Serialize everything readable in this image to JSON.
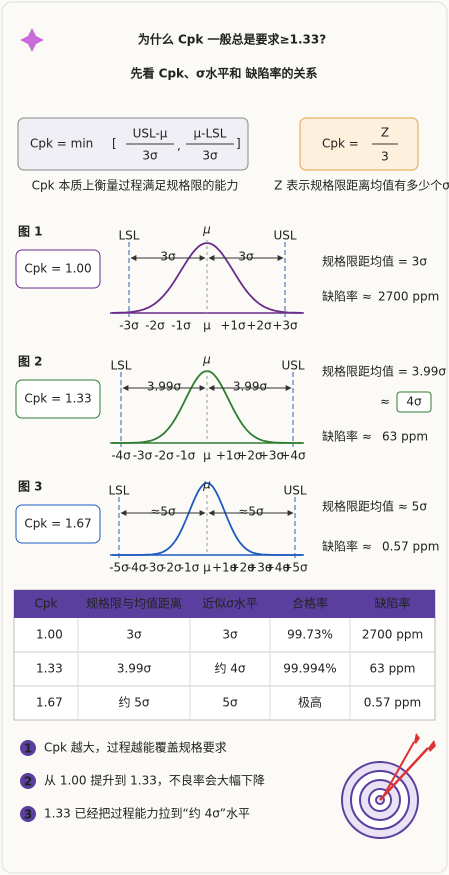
{
  "header": {
    "title": "为什么 Cpk 一般总是要求≥1.33?",
    "subtitle": "先看 Cpk、σ水平和 缺陷率的关系"
  },
  "formulas": {
    "cpk_min": {
      "lhs": "Cpk = min",
      "num1": "USL-μ",
      "den1": "3σ",
      "num2": "μ-LSL",
      "den2": "3σ",
      "caption": "Cpk 本质上衡量过程满足规格限的能力"
    },
    "cpk_z": {
      "lhs": "Cpk =",
      "num": "Z",
      "den": "3",
      "caption": "Z 表示规格限距离均值有多少个σ"
    }
  },
  "figures": [
    {
      "label": "图 1",
      "cpk": "Cpk = 1.00",
      "lsl": "LSL",
      "usl": "USL",
      "mu": "μ",
      "distance": "3σ",
      "ticks": [
        "-3σ",
        "-2σ",
        "-1σ",
        "μ",
        "+1σ",
        "+2σ",
        "+3σ"
      ],
      "note1": "规格限距均值 = 3σ",
      "note2": "缺陷率 ≈",
      "defect": "2700 ppm"
    },
    {
      "label": "图 2",
      "cpk": "Cpk = 1.33",
      "lsl": "LSL",
      "usl": "USL",
      "mu": "μ",
      "distance": "3.99σ",
      "ticks": [
        "-4σ",
        "-3σ",
        "-2σ",
        "-1σ",
        "μ",
        "+1σ",
        "+2σ",
        "+3σ",
        "+4σ"
      ],
      "note1": "规格限距均值 = 3.99σ",
      "approx": "≈",
      "sigma_level": "4σ",
      "note2": "缺陷率 ≈",
      "defect": "63 ppm"
    },
    {
      "label": "图 3",
      "cpk": "Cpk = 1.67",
      "lsl": "LSL",
      "usl": "USL",
      "mu": "μ",
      "distance": "≈5σ",
      "ticks": [
        "-5σ",
        "-4σ",
        "-3σ",
        "-2σ",
        "-1σ",
        "μ",
        "+1σ",
        "+2σ",
        "+3σ",
        "+4σ",
        "+5σ"
      ],
      "note1": "规格限距均值 ≈ 5σ",
      "note2": "缺陷率 ≈",
      "defect": "0.57 ppm"
    }
  ],
  "table": {
    "header": [
      "Cpk",
      "规格限与均值距离",
      "近似σ水平",
      "合格率",
      "缺陷率"
    ],
    "rows": [
      [
        "1.00",
        "3σ",
        "3σ",
        "99.73%",
        "2700 ppm"
      ],
      [
        "1.33",
        "3.99σ",
        "约 4σ",
        "99.994%",
        "63 ppm"
      ],
      [
        "1.67",
        "约 5σ",
        "5σ",
        "极高",
        "0.57 ppm"
      ]
    ]
  },
  "bullets": [
    {
      "number": "1",
      "text": "Cpk 越大，过程越能覆盖规格要求"
    },
    {
      "number": "2",
      "text": "从 1.00 提升到 1.33，不良率会大幅下降"
    },
    {
      "number": "3",
      "text": "1.33 已经把过程能力拉到“约 4σ”水平"
    }
  ]
}
